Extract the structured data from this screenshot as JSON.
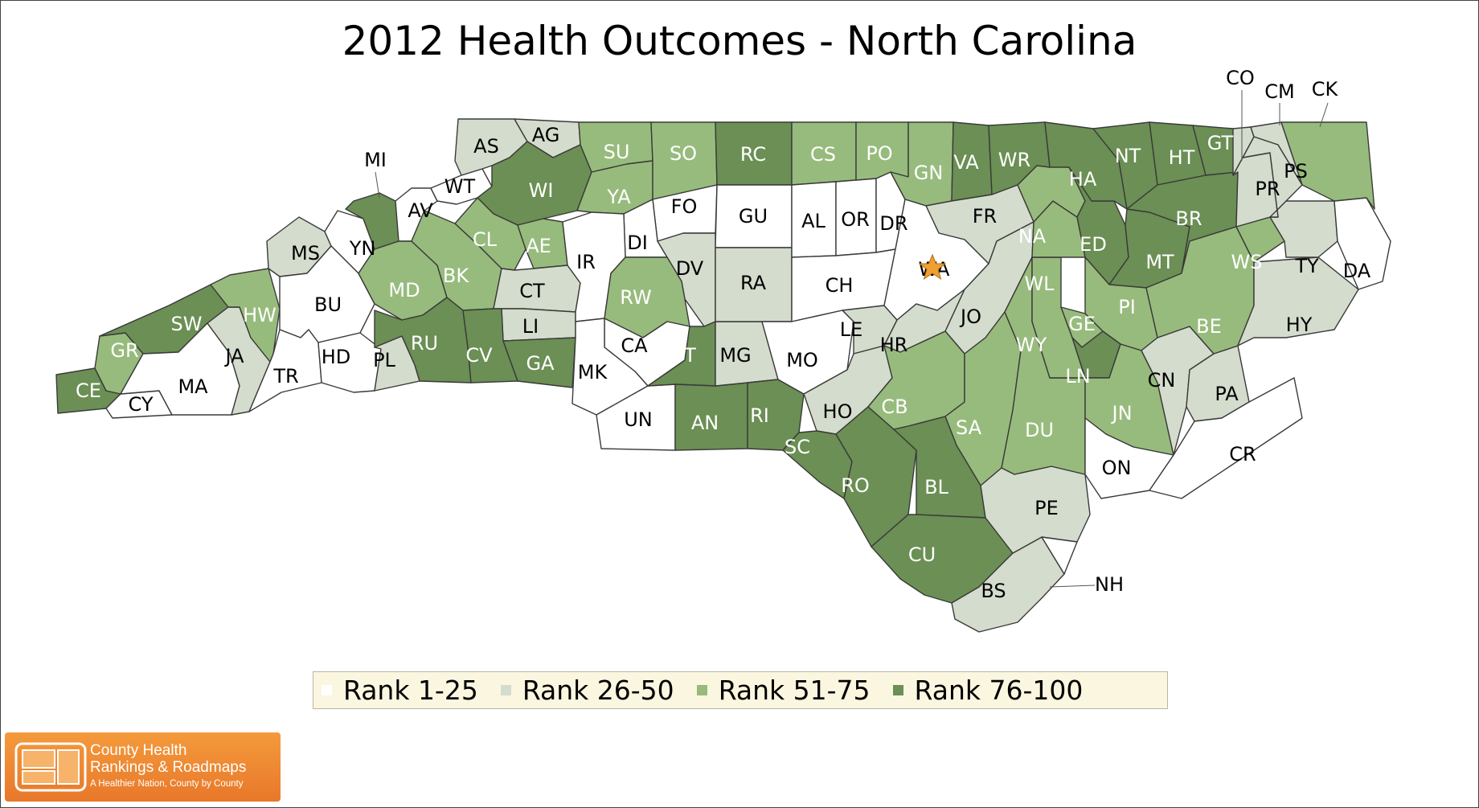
{
  "title": "2012 Health Outcomes - North Carolina",
  "colors": {
    "rank_1_25": "#ffffff",
    "rank_26_50": "#d4dccd",
    "rank_51_75": "#97bb7c",
    "rank_76_100": "#6b8f54",
    "border": "#3a3a3a",
    "star": "#f0a030"
  },
  "legend": [
    {
      "label": "Rank 1-25",
      "color": "#ffffff"
    },
    {
      "label": "Rank 26-50",
      "color": "#d4dccd"
    },
    {
      "label": "Rank 51-75",
      "color": "#97bb7c"
    },
    {
      "label": "Rank 76-100",
      "color": "#6b8f54"
    }
  ],
  "logo": {
    "line1": "County Health",
    "line2": "Rankings & Roadmaps",
    "tagline": "A Healthier Nation, County by County"
  },
  "capital_marker": "star-icon",
  "counties": [
    {
      "code": "CE",
      "tier": 4
    },
    {
      "code": "CY",
      "tier": 1
    },
    {
      "code": "GR",
      "tier": 3
    },
    {
      "code": "SW",
      "tier": 4
    },
    {
      "code": "MA",
      "tier": 1
    },
    {
      "code": "JA",
      "tier": 2
    },
    {
      "code": "HW",
      "tier": 3
    },
    {
      "code": "MS",
      "tier": 2
    },
    {
      "code": "YN",
      "tier": 1
    },
    {
      "code": "MI",
      "tier": 4
    },
    {
      "code": "BU",
      "tier": 1
    },
    {
      "code": "TR",
      "tier": 1
    },
    {
      "code": "HD",
      "tier": 1
    },
    {
      "code": "PL",
      "tier": 2
    },
    {
      "code": "AV",
      "tier": 1
    },
    {
      "code": "WT",
      "tier": 1
    },
    {
      "code": "AS",
      "tier": 2
    },
    {
      "code": "AG",
      "tier": 2
    },
    {
      "code": "WI",
      "tier": 4
    },
    {
      "code": "MD",
      "tier": 3
    },
    {
      "code": "BK",
      "tier": 3
    },
    {
      "code": "CL",
      "tier": 3
    },
    {
      "code": "AE",
      "tier": 3
    },
    {
      "code": "CT",
      "tier": 2
    },
    {
      "code": "LI",
      "tier": 2
    },
    {
      "code": "RU",
      "tier": 4
    },
    {
      "code": "CV",
      "tier": 4
    },
    {
      "code": "GA",
      "tier": 4
    },
    {
      "code": "SU",
      "tier": 3
    },
    {
      "code": "YA",
      "tier": 3
    },
    {
      "code": "SO",
      "tier": 3
    },
    {
      "code": "FO",
      "tier": 1
    },
    {
      "code": "DI",
      "tier": 1
    },
    {
      "code": "IR",
      "tier": 1
    },
    {
      "code": "DV",
      "tier": 2
    },
    {
      "code": "RW",
      "tier": 3
    },
    {
      "code": "CA",
      "tier": 1
    },
    {
      "code": "MK",
      "tier": 1
    },
    {
      "code": "UN",
      "tier": 1
    },
    {
      "code": "ST",
      "tier": 4
    },
    {
      "code": "AN",
      "tier": 4
    },
    {
      "code": "MG",
      "tier": 2
    },
    {
      "code": "RI",
      "tier": 4
    },
    {
      "code": "RC",
      "tier": 4
    },
    {
      "code": "GU",
      "tier": 1
    },
    {
      "code": "RA",
      "tier": 2
    },
    {
      "code": "CS",
      "tier": 3
    },
    {
      "code": "AL",
      "tier": 1
    },
    {
      "code": "OR",
      "tier": 1
    },
    {
      "code": "DR",
      "tier": 1
    },
    {
      "code": "CH",
      "tier": 1
    },
    {
      "code": "MO",
      "tier": 1
    },
    {
      "code": "LE",
      "tier": 2
    },
    {
      "code": "HO",
      "tier": 2
    },
    {
      "code": "SC",
      "tier": 4
    },
    {
      "code": "RO",
      "tier": 4
    },
    {
      "code": "PO",
      "tier": 3
    },
    {
      "code": "GN",
      "tier": 3
    },
    {
      "code": "VA",
      "tier": 4
    },
    {
      "code": "FR",
      "tier": 2
    },
    {
      "code": "WA",
      "tier": 1
    },
    {
      "code": "HR",
      "tier": 2
    },
    {
      "code": "JO",
      "tier": 2
    },
    {
      "code": "CB",
      "tier": 3
    },
    {
      "code": "SA",
      "tier": 3
    },
    {
      "code": "BL",
      "tier": 4
    },
    {
      "code": "CU",
      "tier": 4
    },
    {
      "code": "BS",
      "tier": 2
    },
    {
      "code": "PE",
      "tier": 2
    },
    {
      "code": "NH",
      "tier": 1
    },
    {
      "code": "DU",
      "tier": 3
    },
    {
      "code": "WY",
      "tier": 3
    },
    {
      "code": "WL",
      "tier": 3
    },
    {
      "code": "NA",
      "tier": 3
    },
    {
      "code": "ED",
      "tier": 4
    },
    {
      "code": "WR",
      "tier": 4
    },
    {
      "code": "HA",
      "tier": 4
    },
    {
      "code": "NT",
      "tier": 4
    },
    {
      "code": "HT",
      "tier": 4
    },
    {
      "code": "GT",
      "tier": 4
    },
    {
      "code": "MT",
      "tier": 4
    },
    {
      "code": "BR",
      "tier": 4
    },
    {
      "code": "PI",
      "tier": 3
    },
    {
      "code": "GE",
      "tier": 3
    },
    {
      "code": "LN",
      "tier": 4
    },
    {
      "code": "JN",
      "tier": 3
    },
    {
      "code": "ON",
      "tier": 1
    },
    {
      "code": "CN",
      "tier": 2
    },
    {
      "code": "PA",
      "tier": 2
    },
    {
      "code": "CR",
      "tier": 1
    },
    {
      "code": "BE",
      "tier": 3
    },
    {
      "code": "HY",
      "tier": 2
    },
    {
      "code": "WS",
      "tier": 3
    },
    {
      "code": "TY",
      "tier": 2
    },
    {
      "code": "DA",
      "tier": 1
    },
    {
      "code": "PR",
      "tier": 2
    },
    {
      "code": "PS",
      "tier": 2
    },
    {
      "code": "CO",
      "tier": 2
    },
    {
      "code": "CM",
      "tier": 2
    },
    {
      "code": "CK",
      "tier": 3
    }
  ]
}
